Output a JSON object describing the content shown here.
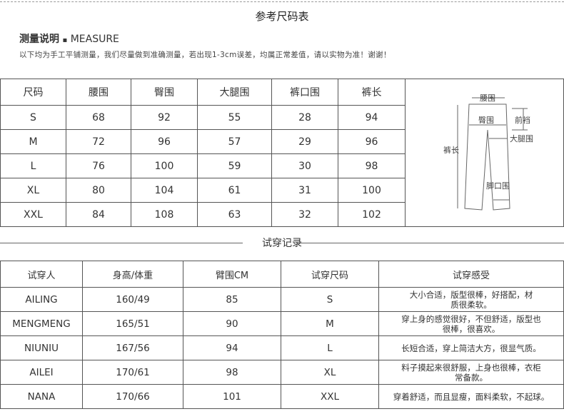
{
  "title": "参考尺码表",
  "measure": {
    "cn": "测量说明",
    "sep": "▪",
    "en": "MEASURE"
  },
  "note": "以下均为手工平铺测量，我们尽量做到准确测量，若出现1-3cm误差，均属正常差值，请以实物为准！谢谢！",
  "size_table": {
    "headers": [
      "尺码",
      "腰围",
      "臀围",
      "大腿围",
      "裤口围",
      "裤长"
    ],
    "rows": [
      [
        "S",
        "68",
        "92",
        "55",
        "28",
        "94"
      ],
      [
        "M",
        "72",
        "96",
        "57",
        "29",
        "96"
      ],
      [
        "L",
        "76",
        "100",
        "59",
        "30",
        "98"
      ],
      [
        "XL",
        "80",
        "104",
        "61",
        "31",
        "100"
      ],
      [
        "XXL",
        "84",
        "108",
        "63",
        "32",
        "102"
      ]
    ]
  },
  "diagram": {
    "labels": {
      "waist": "腰围",
      "hip": "臀围",
      "rise": "前裆",
      "thigh": "大腿围",
      "length": "裤长",
      "hem": "脚口围"
    }
  },
  "trial_title": "试穿记录",
  "trial_table": {
    "headers": [
      "试穿人",
      "身高/体重",
      "臂围CM",
      "试穿尺码",
      "试穿感受"
    ],
    "rows": [
      [
        "AILING",
        "160/49",
        "85",
        "S",
        "大小合适，版型很棒，好搭配，材质很柔软。"
      ],
      [
        "MENGMENG",
        "165/51",
        "90",
        "M",
        "穿上身的感觉很好，不但舒适，版型也很棒，很喜欢。"
      ],
      [
        "NIUNIU",
        "167/56",
        "94",
        "L",
        "长短合适，穿上简洁大方，很显气质。"
      ],
      [
        "AILEI",
        "170/61",
        "98",
        "XL",
        "料子摸起来很舒服，上身也很棒，衣柜常备款。"
      ],
      [
        "NANA",
        "170/66",
        "101",
        "XXL",
        "穿着舒适，而且显瘦，面料柔软，不起球。"
      ]
    ]
  }
}
